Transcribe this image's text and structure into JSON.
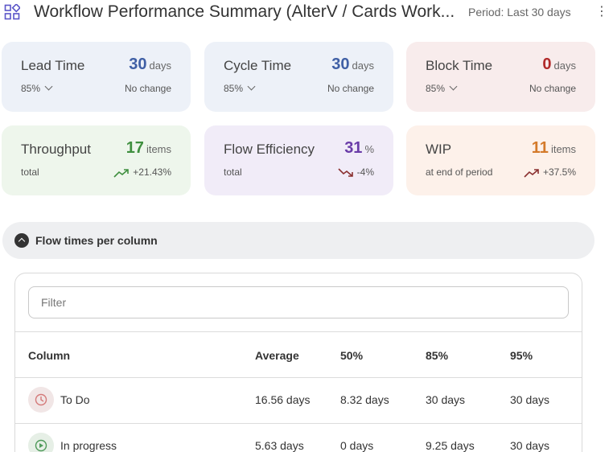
{
  "header": {
    "title": "Workflow Performance Summary (AlterV / Cards Work...",
    "period": "Period: Last 30 days",
    "menu_icon": "more-vertical-icon",
    "app_icon": "apps-grid-icon"
  },
  "metrics": {
    "lead_time": {
      "label": "Lead Time",
      "value": "30",
      "unit": "days",
      "percentile": "85%",
      "change": "No change"
    },
    "cycle_time": {
      "label": "Cycle Time",
      "value": "30",
      "unit": "days",
      "percentile": "85%",
      "change": "No change"
    },
    "block_time": {
      "label": "Block Time",
      "value": "0",
      "unit": "days",
      "percentile": "85%",
      "change": "No change"
    },
    "throughput": {
      "label": "Throughput",
      "value": "17",
      "unit": "items",
      "sub": "total",
      "change": "+21.43%",
      "trend": "up"
    },
    "flow_efficiency": {
      "label": "Flow Efficiency",
      "value": "31",
      "unit": "%",
      "sub": "total",
      "change": "-4%",
      "trend": "down"
    },
    "wip": {
      "label": "WIP",
      "value": "11",
      "unit": "items",
      "sub": "at end of period",
      "change": "+37.5%",
      "trend": "up"
    }
  },
  "colors": {
    "blue": "#3f5fa5",
    "red": "#b12a2a",
    "green": "#3f8f3f",
    "purple": "#6a3ca8",
    "orange": "#d47a2a"
  },
  "section": {
    "title": "Flow times per column",
    "icon": "chevron-up-circle-icon"
  },
  "table": {
    "filter_placeholder": "Filter",
    "headers": {
      "column": "Column",
      "average": "Average",
      "p50": "50%",
      "p85": "85%",
      "p95": "95%"
    },
    "rows": [
      {
        "name": "To Do",
        "icon": "clock-icon",
        "average": "16.56 days",
        "p50": "8.32 days",
        "p85": "30 days",
        "p95": "30 days"
      },
      {
        "name": "In progress",
        "icon": "play-circle-icon",
        "average": "5.63 days",
        "p50": "0 days",
        "p85": "9.25 days",
        "p95": "30 days"
      }
    ]
  }
}
